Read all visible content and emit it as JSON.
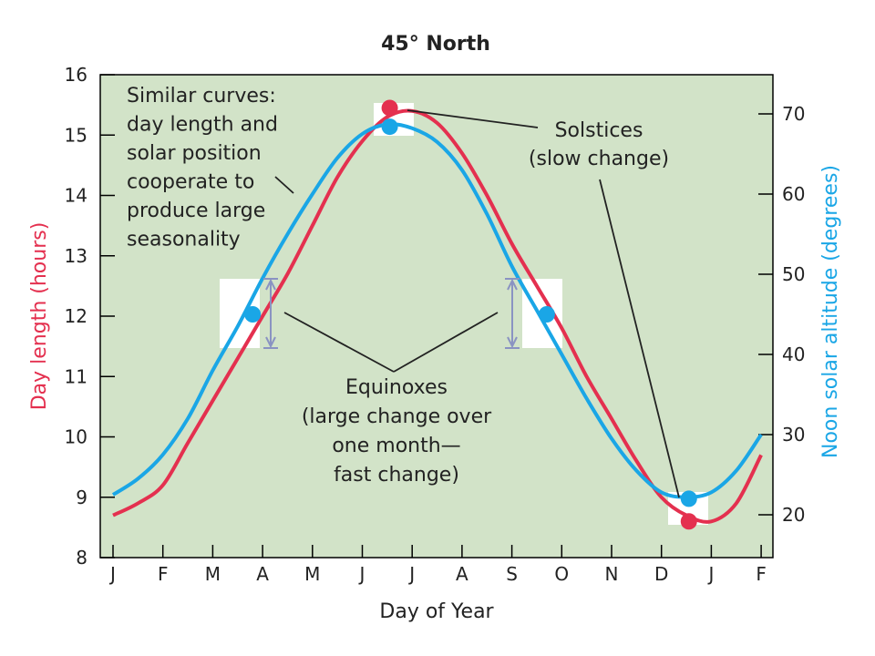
{
  "chart_data": {
    "type": "line",
    "title": "45° North",
    "xlabel": "Day of Year",
    "ylabel": "Day length (hours)",
    "y2label": "Noon solar altitude (degrees)",
    "months": [
      "J",
      "F",
      "M",
      "A",
      "M",
      "J",
      "J",
      "A",
      "S",
      "O",
      "N",
      "D",
      "J",
      "F"
    ],
    "ylim": [
      8,
      16
    ],
    "yticks": [
      8,
      9,
      10,
      11,
      12,
      13,
      14,
      15,
      16
    ],
    "y2lim": [
      15,
      75
    ],
    "y2ticks": [
      20,
      30,
      40,
      50,
      60,
      70
    ],
    "background": "#d2e3c8",
    "colors": {
      "day_length": "#e4304f",
      "solar_altitude": "#1aa6e6",
      "arrow": "#8a93c2"
    },
    "series": [
      {
        "axis": "left",
        "x": [
          0,
          0.5,
          1,
          1.5,
          2,
          2.5,
          3,
          3.5,
          4,
          4.5,
          5,
          5.5,
          6,
          6.5,
          7,
          7.5,
          8,
          8.5,
          9,
          9.5,
          10,
          10.5,
          11,
          11.5,
          12,
          12.5,
          13
        ],
        "y": [
          8.7,
          8.9,
          9.2,
          9.9,
          10.6,
          11.3,
          12.0,
          12.7,
          13.5,
          14.3,
          14.9,
          15.3,
          15.4,
          15.2,
          14.7,
          14.0,
          13.2,
          12.5,
          11.8,
          11.0,
          10.3,
          9.6,
          9.0,
          8.7,
          8.6,
          8.9,
          9.7
        ]
      },
      {
        "axis": "right",
        "x": [
          0,
          0.5,
          1,
          1.5,
          2,
          2.5,
          3,
          3.5,
          4,
          4.5,
          5,
          5.5,
          6,
          6.5,
          7,
          7.5,
          8,
          8.5,
          9,
          9.5,
          10,
          10.5,
          11,
          11.5,
          12,
          12.5,
          13
        ],
        "y": [
          22.5,
          24.5,
          27.5,
          32,
          38,
          43.5,
          49.5,
          55,
          60,
          64.5,
          67.5,
          68.7,
          68.2,
          66.5,
          63,
          57.5,
          51,
          45.5,
          40,
          34.5,
          29.5,
          25.5,
          22.8,
          22.2,
          22.8,
          25.5,
          30
        ]
      }
    ],
    "markers": {
      "day_length": [
        {
          "x": 5.55,
          "y": 15.45
        },
        {
          "x": 11.55,
          "y": 8.6
        }
      ],
      "solar_altitude": [
        {
          "x": 2.8,
          "y": 45
        },
        {
          "x": 5.55,
          "y": 68.4
        },
        {
          "x": 8.7,
          "y": 45
        },
        {
          "x": 11.55,
          "y": 22
        }
      ]
    },
    "annotations": {
      "similar_curves": [
        "Similar curves:",
        "day length and",
        "solar position",
        "cooperate to",
        "produce large",
        "seasonality"
      ],
      "solstices": [
        "Solstices",
        "(slow change)"
      ],
      "equinoxes": [
        "Equinoxes",
        "(large change over",
        "one month—",
        "fast change)"
      ]
    }
  }
}
